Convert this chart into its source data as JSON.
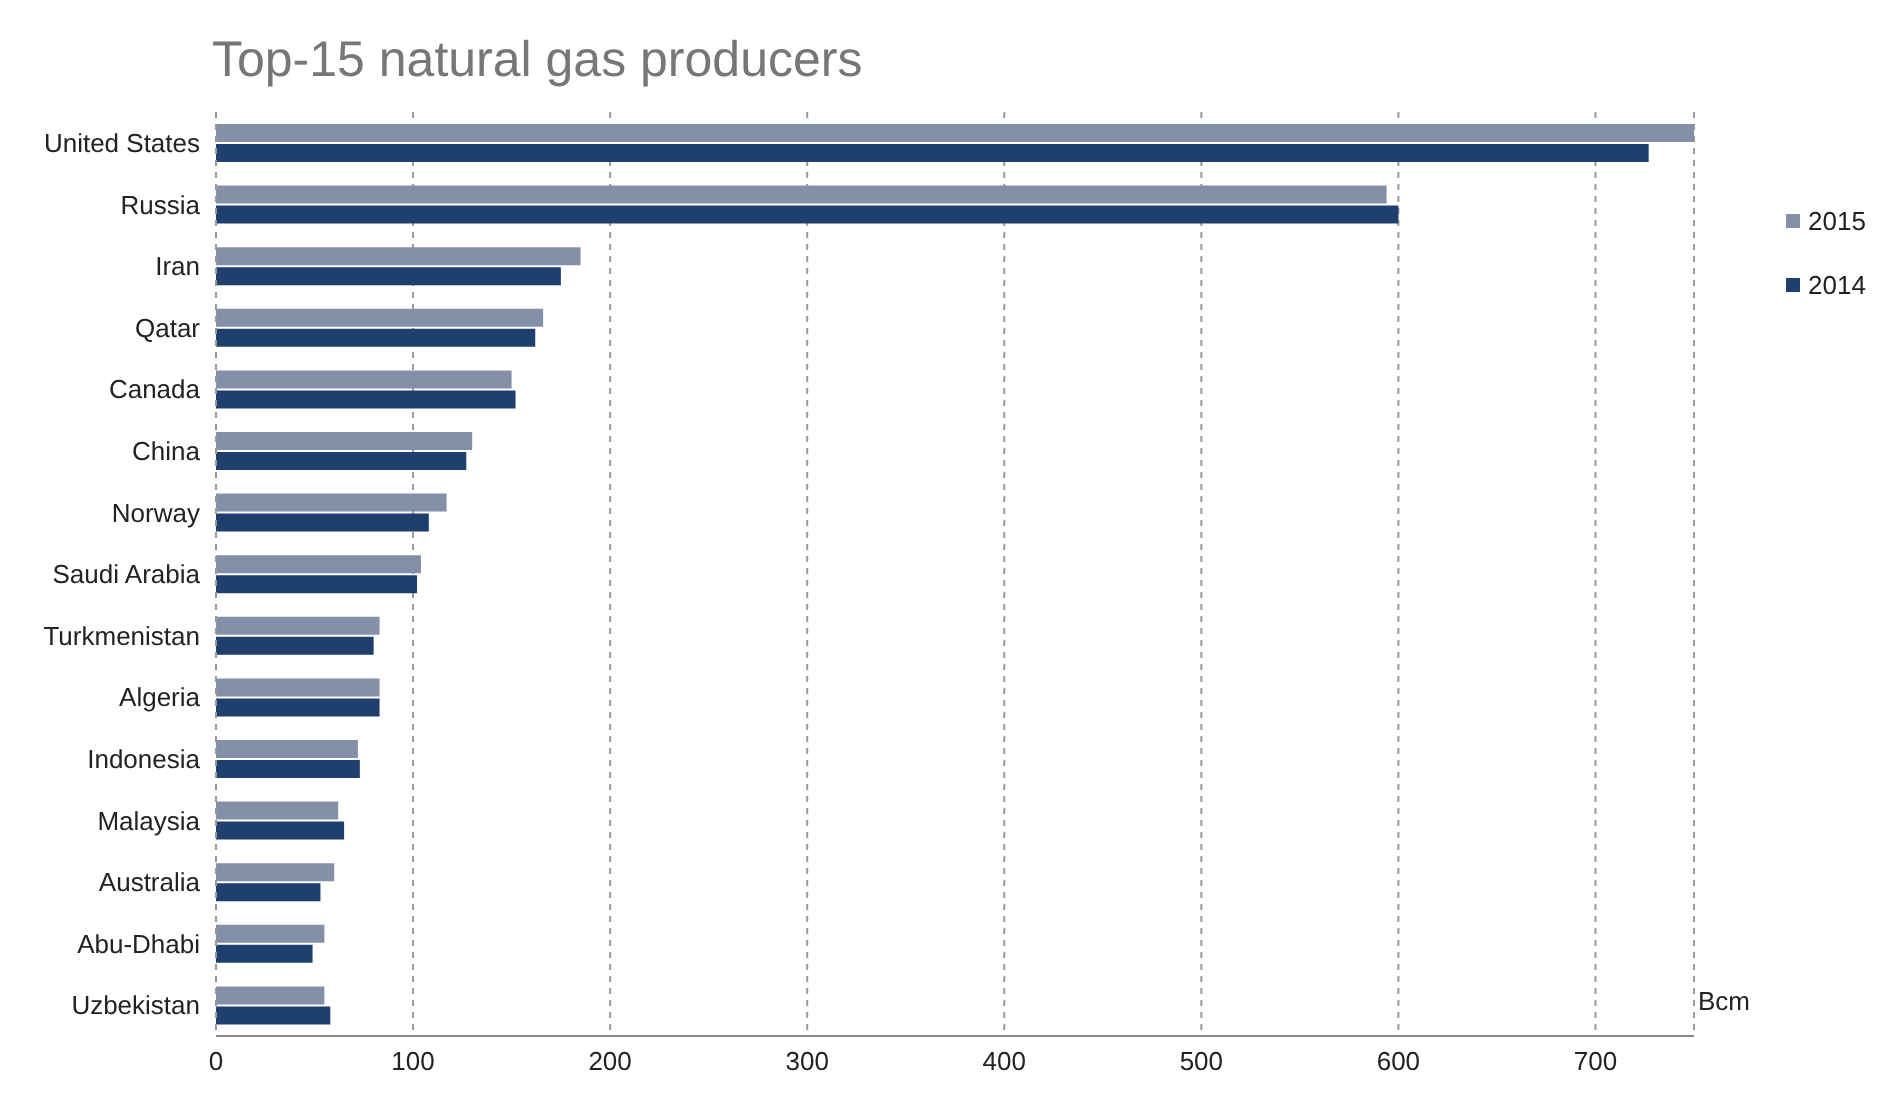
{
  "chart_data": {
    "type": "bar",
    "orientation": "horizontal",
    "title": "Top-15 natural gas producers",
    "categories": [
      "United States",
      "Russia",
      "Iran",
      "Qatar",
      "Canada",
      "China",
      "Norway",
      "Saudi Arabia",
      "Turkmenistan",
      "Algeria",
      "Indonesia",
      "Malaysia",
      "Australia",
      "Abu-Dhabi",
      "Uzbekistan"
    ],
    "series": [
      {
        "name": "2015",
        "color": "#8490a8",
        "values": [
          750,
          594,
          185,
          166,
          150,
          130,
          117,
          104,
          83,
          83,
          72,
          62,
          60,
          55,
          55
        ]
      },
      {
        "name": "2014",
        "color": "#1f3f6e",
        "values": [
          727,
          600,
          175,
          162,
          152,
          127,
          108,
          102,
          80,
          83,
          73,
          65,
          53,
          49,
          58
        ]
      }
    ],
    "xlim": [
      0,
      750
    ],
    "xticks": [
      0,
      100,
      200,
      300,
      400,
      500,
      600,
      700
    ],
    "grid": "x",
    "legend": "right",
    "annotations": [
      "Bcm"
    ]
  }
}
